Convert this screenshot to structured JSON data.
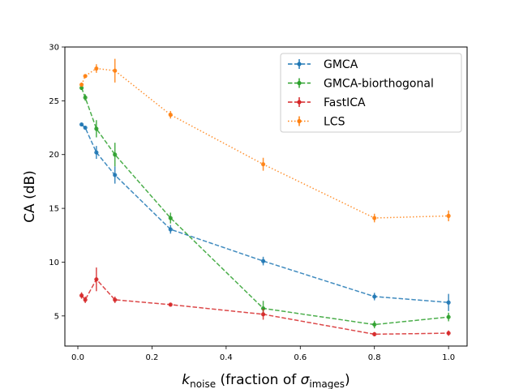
{
  "chart_data": {
    "type": "line",
    "xlabel_main": "k",
    "xlabel_sub": "noise",
    "xlabel_rest": " (fraction of ",
    "xlabel_sigma": "σ",
    "xlabel_sigma_sub": "images",
    "xlabel_close": ")",
    "ylabel": "CA (dB)",
    "xlim": [
      -0.035,
      1.05
    ],
    "ylim": [
      2.2,
      30
    ],
    "xticks": [
      0.0,
      0.2,
      0.4,
      0.6,
      0.8,
      1.0
    ],
    "xtick_labels": [
      "0.0",
      "0.2",
      "0.4",
      "0.6",
      "0.8",
      "1.0"
    ],
    "yticks": [
      5,
      10,
      15,
      20,
      25,
      30
    ],
    "ytick_labels": [
      "5",
      "10",
      "15",
      "20",
      "25",
      "30"
    ],
    "grid": false,
    "legend_position": "top-right",
    "series": [
      {
        "name": "GMCA",
        "color": "#1f77b4",
        "dash": "dashed",
        "points": [
          {
            "x": 0.01,
            "y": 22.8,
            "err": 0.15
          },
          {
            "x": 0.02,
            "y": 22.5,
            "err": 0.15
          },
          {
            "x": 0.05,
            "y": 20.2,
            "err": 0.6
          },
          {
            "x": 0.1,
            "y": 18.1,
            "err": 0.8
          },
          {
            "x": 0.25,
            "y": 13.05,
            "err": 0.4
          },
          {
            "x": 0.5,
            "y": 10.1,
            "err": 0.4
          },
          {
            "x": 0.8,
            "y": 6.8,
            "err": 0.35
          },
          {
            "x": 1.0,
            "y": 6.25,
            "err": 0.8
          }
        ]
      },
      {
        "name": "GMCA-biorthogonal",
        "color": "#2ca02c",
        "dash": "dashed",
        "points": [
          {
            "x": 0.01,
            "y": 26.2,
            "err": 0.2
          },
          {
            "x": 0.02,
            "y": 25.3,
            "err": 0.3
          },
          {
            "x": 0.05,
            "y": 22.4,
            "err": 0.8
          },
          {
            "x": 0.1,
            "y": 20.0,
            "err": 1.1
          },
          {
            "x": 0.25,
            "y": 14.1,
            "err": 0.5
          },
          {
            "x": 0.5,
            "y": 5.7,
            "err": 0.7
          },
          {
            "x": 0.8,
            "y": 4.2,
            "err": 0.35
          },
          {
            "x": 1.0,
            "y": 4.9,
            "err": 0.4
          }
        ]
      },
      {
        "name": "FastICA",
        "color": "#d62728",
        "dash": "dashed",
        "points": [
          {
            "x": 0.01,
            "y": 6.9,
            "err": 0.3
          },
          {
            "x": 0.02,
            "y": 6.5,
            "err": 0.3
          },
          {
            "x": 0.05,
            "y": 8.4,
            "err": 1.1
          },
          {
            "x": 0.1,
            "y": 6.5,
            "err": 0.3
          },
          {
            "x": 0.25,
            "y": 6.05,
            "err": 0.15
          },
          {
            "x": 0.5,
            "y": 5.15,
            "err": 0.5
          },
          {
            "x": 0.8,
            "y": 3.3,
            "err": 0.2
          },
          {
            "x": 1.0,
            "y": 3.4,
            "err": 0.25
          }
        ]
      },
      {
        "name": "LCS",
        "color": "#ff7f0e",
        "dash": "dotted",
        "points": [
          {
            "x": 0.01,
            "y": 26.5,
            "err": 0.2
          },
          {
            "x": 0.02,
            "y": 27.3,
            "err": 0.15
          },
          {
            "x": 0.05,
            "y": 28.0,
            "err": 0.4
          },
          {
            "x": 0.1,
            "y": 27.8,
            "err": 1.1
          },
          {
            "x": 0.25,
            "y": 23.7,
            "err": 0.35
          },
          {
            "x": 0.5,
            "y": 19.1,
            "err": 0.6
          },
          {
            "x": 0.8,
            "y": 14.1,
            "err": 0.4
          },
          {
            "x": 1.0,
            "y": 14.3,
            "err": 0.5
          }
        ]
      }
    ]
  }
}
